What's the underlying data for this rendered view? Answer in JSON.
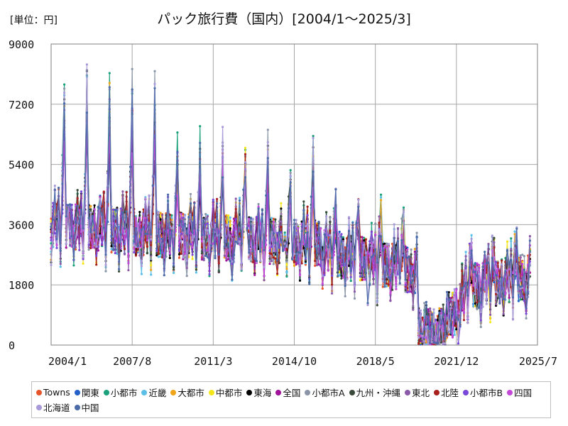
{
  "header": {
    "unit": "[単位：円]",
    "title": "パック旅行費（国内）[2004/1～2025/3]"
  },
  "chart_data": {
    "type": "line",
    "title": "パック旅行費（国内）[2004/1～2025/3]",
    "unit_label": "[単位：円]",
    "x_tick_labels": [
      "2004/1",
      "2007/8",
      "2011/3",
      "2014/10",
      "2018/5",
      "2021/12",
      "2025/7"
    ],
    "y_tick_labels": [
      "0",
      "1800",
      "3600",
      "5400",
      "7200",
      "9000"
    ],
    "ylim": [
      0,
      9000
    ],
    "xlim": [
      "2004/1",
      "2025/7"
    ],
    "grid": true,
    "legend_position": "bottom",
    "series": [
      {
        "name": "Towns",
        "color": "#e8542a"
      },
      {
        "name": "関東",
        "color": "#2360c8"
      },
      {
        "name": "小都市",
        "color": "#1aa07a"
      },
      {
        "name": "近畿",
        "color": "#5bbfe8"
      },
      {
        "name": "大都市",
        "color": "#f0a418"
      },
      {
        "name": "中都市",
        "color": "#f5e61c"
      },
      {
        "name": "東海",
        "color": "#000000"
      },
      {
        "name": "全国",
        "color": "#a0109a"
      },
      {
        "name": "小都市A",
        "color": "#8a96a8"
      },
      {
        "name": "九州・沖縄",
        "color": "#3a4a3a"
      },
      {
        "name": "東北",
        "color": "#8a5aa8"
      },
      {
        "name": "北陸",
        "color": "#a8201e"
      },
      {
        "name": "小都市B",
        "color": "#7a48d8"
      },
      {
        "name": "四国",
        "color": "#c448d8"
      },
      {
        "name": "北海道",
        "color": "#a89ad8"
      },
      {
        "name": "中国",
        "color": "#4a6aa8"
      }
    ]
  }
}
